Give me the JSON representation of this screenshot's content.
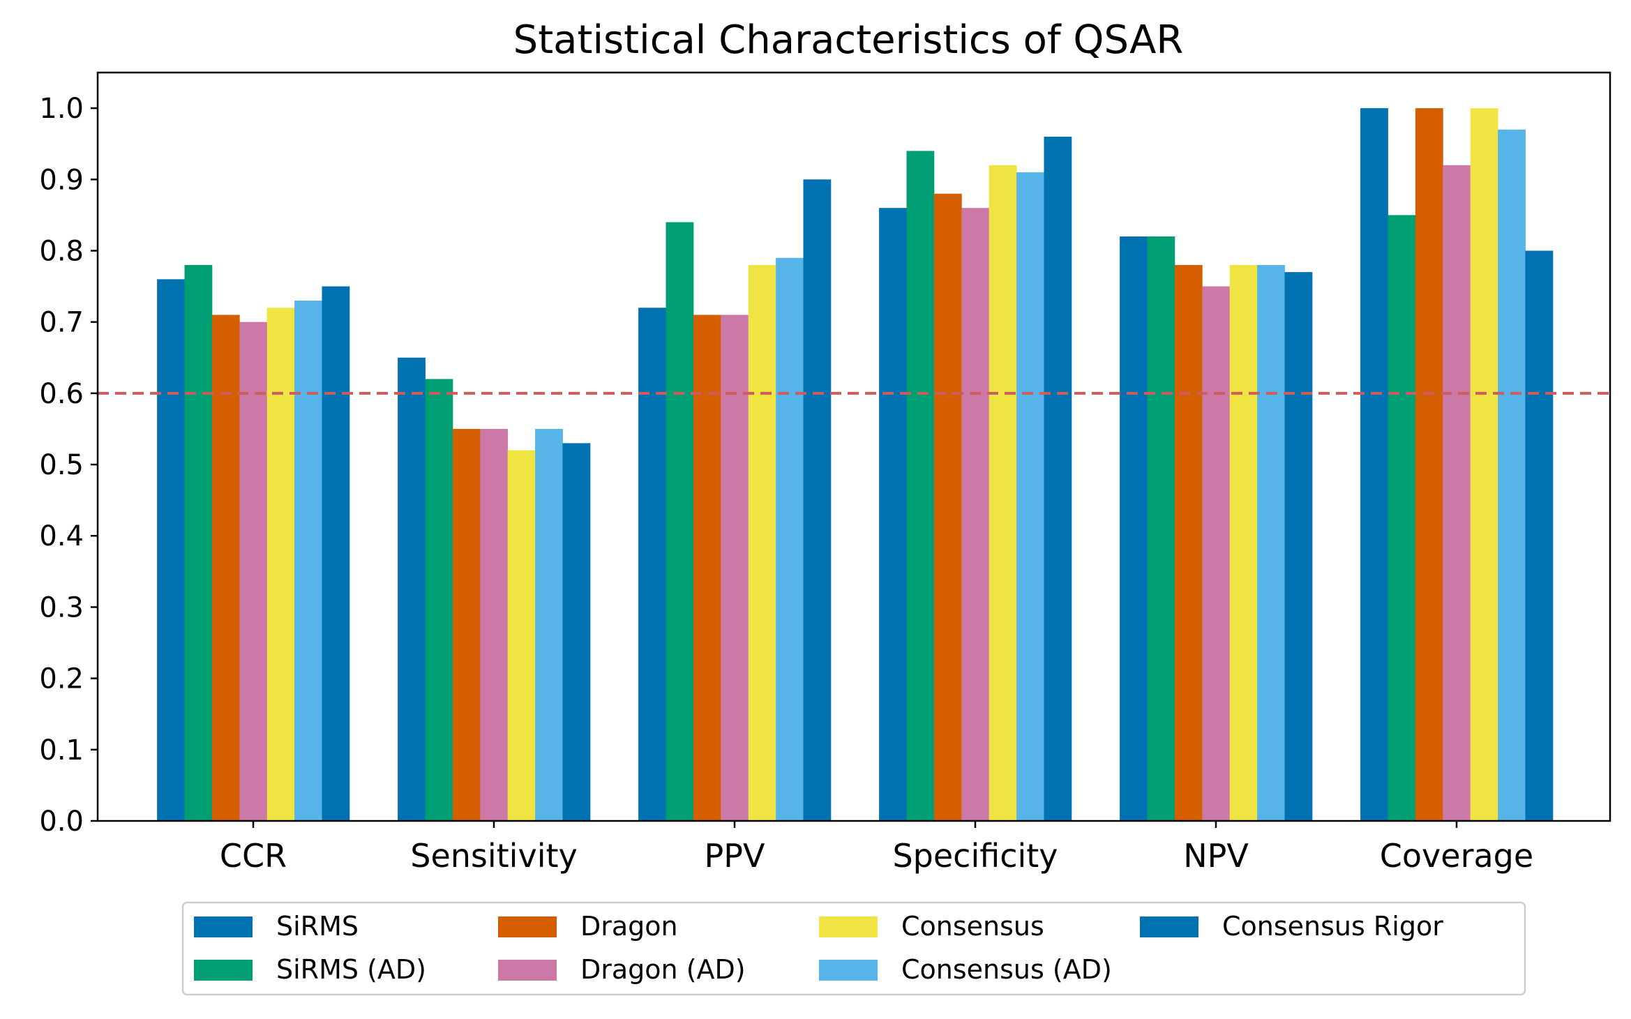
{
  "chart_data": {
    "type": "bar",
    "title": "Statistical Characteristics of QSAR",
    "xlabel": "",
    "ylabel": "",
    "categories": [
      "CCR",
      "Sensitivity",
      "PPV",
      "Specificity",
      "NPV",
      "Coverage"
    ],
    "ylim": [
      0,
      1.05
    ],
    "yticks": [
      "0.0",
      "0.1",
      "0.2",
      "0.3",
      "0.4",
      "0.5",
      "0.6",
      "0.7",
      "0.8",
      "0.9",
      "1.0"
    ],
    "ytick_values": [
      0.0,
      0.1,
      0.2,
      0.3,
      0.4,
      0.5,
      0.6,
      0.7,
      0.8,
      0.9,
      1.0
    ],
    "grid": false,
    "legend_placement": "bottom-center",
    "legend_columns": 4,
    "reference_line": {
      "value": 0.6,
      "style": "dashed",
      "color": "#cd5c5c"
    },
    "series": [
      {
        "name": "SiRMS",
        "color": "#0072b2",
        "values": [
          0.76,
          0.65,
          0.72,
          0.86,
          0.82,
          1.0
        ]
      },
      {
        "name": "SiRMS (AD)",
        "color": "#009e73",
        "values": [
          0.78,
          0.62,
          0.84,
          0.94,
          0.82,
          0.85
        ]
      },
      {
        "name": "Dragon",
        "color": "#d55e00",
        "values": [
          0.71,
          0.55,
          0.71,
          0.88,
          0.78,
          1.0
        ]
      },
      {
        "name": "Dragon (AD)",
        "color": "#cc79a7",
        "values": [
          0.7,
          0.55,
          0.71,
          0.86,
          0.75,
          0.92
        ]
      },
      {
        "name": "Consensus",
        "color": "#f0e442",
        "values": [
          0.72,
          0.52,
          0.78,
          0.92,
          0.78,
          1.0
        ]
      },
      {
        "name": "Consensus (AD)",
        "color": "#56b4e9",
        "values": [
          0.73,
          0.55,
          0.79,
          0.91,
          0.78,
          0.97
        ]
      },
      {
        "name": "Consensus Rigor",
        "color": "#0072b2",
        "values": [
          0.75,
          0.53,
          0.9,
          0.96,
          0.77,
          0.8
        ]
      }
    ]
  }
}
